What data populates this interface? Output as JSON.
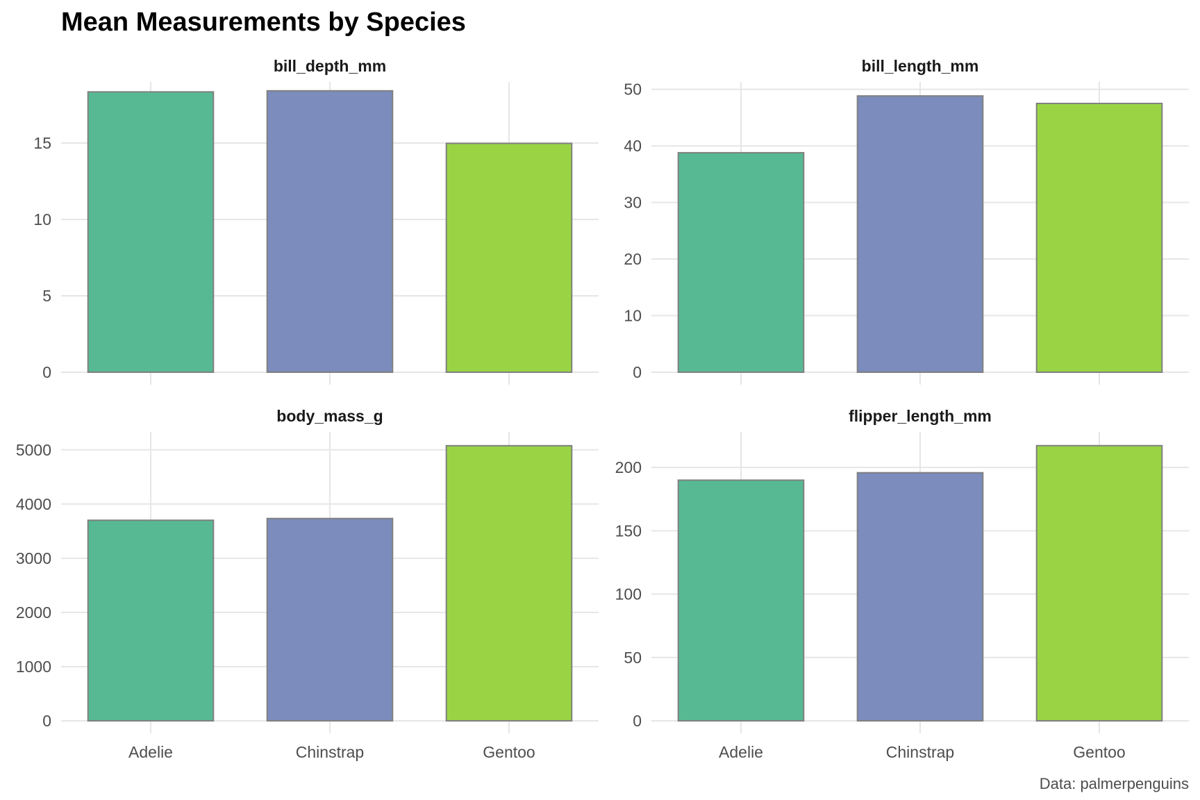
{
  "title": "Mean Measurements by Species",
  "caption": "Data: palmerpenguins",
  "colors": {
    "Adelie": "#57b993",
    "Chinstrap": "#7b8cbd",
    "Gentoo": "#9ad444",
    "bar_outline": "#808080",
    "grid": "#e6e6e6"
  },
  "chart_data": [
    {
      "type": "bar",
      "title": "bill_depth_mm",
      "categories": [
        "Adelie",
        "Chinstrap",
        "Gentoo"
      ],
      "values": [
        18.35,
        18.42,
        14.98
      ],
      "ylim": [
        0,
        19.0
      ],
      "yticks": [
        0,
        5,
        10,
        15
      ],
      "grid": true
    },
    {
      "type": "bar",
      "title": "bill_length_mm",
      "categories": [
        "Adelie",
        "Chinstrap",
        "Gentoo"
      ],
      "values": [
        38.79,
        48.83,
        47.5
      ],
      "ylim": [
        0,
        51.3
      ],
      "yticks": [
        0,
        10,
        20,
        30,
        40,
        50
      ],
      "grid": true
    },
    {
      "type": "bar",
      "title": "body_mass_g",
      "categories": [
        "Adelie",
        "Chinstrap",
        "Gentoo"
      ],
      "values": [
        3700.7,
        3733.1,
        5076.0
      ],
      "ylim": [
        0,
        5330
      ],
      "yticks": [
        0,
        1000,
        2000,
        3000,
        4000,
        5000
      ],
      "grid": true
    },
    {
      "type": "bar",
      "title": "flipper_length_mm",
      "categories": [
        "Adelie",
        "Chinstrap",
        "Gentoo"
      ],
      "values": [
        189.95,
        195.82,
        217.19
      ],
      "ylim": [
        0,
        228
      ],
      "yticks": [
        0,
        50,
        100,
        150,
        200
      ],
      "grid": true
    }
  ]
}
